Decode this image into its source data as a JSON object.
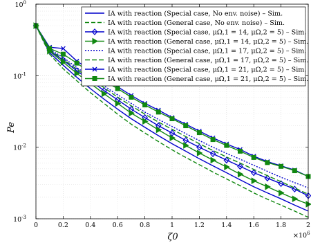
{
  "chart_data": {
    "type": "line",
    "title": "",
    "xlabel": "ζ0",
    "ylabel": "Pe",
    "x_multiplier_label": "×10",
    "x_multiplier_exp": "6",
    "xlim": [
      0,
      2
    ],
    "ylim": [
      0.001,
      1
    ],
    "y_scale": "log",
    "grid": true,
    "legend_position": "top-right",
    "x_ticks": [
      "0",
      "0.2",
      "0.4",
      "0.6",
      "0.8",
      "1",
      "1.2",
      "1.4",
      "1.6",
      "1.8",
      "2"
    ],
    "y_ticks": [
      {
        "value": 1,
        "label": "10",
        "exp": "0"
      },
      {
        "value": 0.1,
        "label": "10",
        "exp": "-1"
      },
      {
        "value": 0.01,
        "label": "10",
        "exp": "-2"
      },
      {
        "value": 0.001,
        "label": "10",
        "exp": "-3"
      }
    ],
    "x": [
      0,
      0.1,
      0.2,
      0.3,
      0.4,
      0.5,
      0.6,
      0.7,
      0.8,
      0.9,
      1.0,
      1.1,
      1.2,
      1.3,
      1.4,
      1.5,
      1.6,
      1.7,
      1.8,
      1.9,
      2.0
    ],
    "series": [
      {
        "name": "IA with reaction (Special case, No env. noise) – Sim.",
        "color": "#0000cc",
        "dash": "",
        "marker": "none",
        "values": [
          0.5,
          0.21,
          0.14,
          0.095,
          0.066,
          0.047,
          0.034,
          0.025,
          0.019,
          0.0145,
          0.0112,
          0.0088,
          0.0069,
          0.0055,
          0.0044,
          0.0035,
          0.0028,
          0.0023,
          0.0019,
          0.00155,
          0.00128
        ]
      },
      {
        "name": "IA with reaction (General case, No env. noise) – Sim.",
        "color": "#118811",
        "dash": "6,3",
        "marker": "none",
        "values": [
          0.5,
          0.2,
          0.125,
          0.085,
          0.058,
          0.041,
          0.029,
          0.021,
          0.0158,
          0.012,
          0.0092,
          0.0072,
          0.0057,
          0.0045,
          0.0036,
          0.0029,
          0.0023,
          0.00188,
          0.00155,
          0.00128,
          0.00105
        ]
      },
      {
        "name": "IA with reaction (Special case, μΩ,1 = 14, μΩ,2 = 5) – Sim.",
        "color": "#0000cc",
        "dash": "",
        "marker": "diamond",
        "values": [
          0.5,
          0.225,
          0.165,
          0.117,
          0.085,
          0.062,
          0.046,
          0.034,
          0.026,
          0.02,
          0.0158,
          0.0125,
          0.01,
          0.0081,
          0.0066,
          0.0054,
          0.0044,
          0.0037,
          0.0031,
          0.0026,
          0.0021
        ]
      },
      {
        "name": "IA with reaction (General case, μΩ,1 = 14, μΩ,2 = 5) – Sim.",
        "color": "#118811",
        "dash": "",
        "marker": "triangle",
        "values": [
          0.5,
          0.22,
          0.155,
          0.108,
          0.078,
          0.056,
          0.041,
          0.03,
          0.023,
          0.0175,
          0.0135,
          0.0106,
          0.0083,
          0.0066,
          0.0053,
          0.0042,
          0.0034,
          0.0028,
          0.0023,
          0.0019,
          0.0016
        ]
      },
      {
        "name": "IA with reaction (Special case, μΩ,1 = 17, μΩ,2 = 5) – Sim.",
        "color": "#0000cc",
        "dash": "2,2",
        "marker": "none",
        "values": [
          0.5,
          0.235,
          0.18,
          0.13,
          0.097,
          0.072,
          0.054,
          0.041,
          0.031,
          0.0245,
          0.0195,
          0.0155,
          0.0124,
          0.01,
          0.0082,
          0.0068,
          0.0056,
          0.0046,
          0.0038,
          0.0032,
          0.0027
        ]
      },
      {
        "name": "IA with reaction (General case, μΩ,1 = 17, μΩ,2 = 5) – Sim.",
        "color": "#118811",
        "dash": "7,3",
        "marker": "none",
        "values": [
          0.5,
          0.23,
          0.17,
          0.123,
          0.091,
          0.068,
          0.05,
          0.038,
          0.029,
          0.0225,
          0.0178,
          0.0141,
          0.0112,
          0.009,
          0.0073,
          0.006,
          0.0049,
          0.004,
          0.0033,
          0.0027,
          0.0022
        ]
      },
      {
        "name": "IA with reaction (Special case, μΩ,1 = 21, μΩ,2 = 5) – Sim.",
        "color": "#0000cc",
        "dash": "",
        "marker": "x",
        "values": [
          0.5,
          0.25,
          0.24,
          0.16,
          0.12,
          0.092,
          0.07,
          0.053,
          0.041,
          0.033,
          0.026,
          0.021,
          0.0168,
          0.0135,
          0.0111,
          0.0093,
          0.0075,
          0.0063,
          0.0055,
          0.0048,
          0.0039
        ]
      },
      {
        "name": "IA with reaction (General case, μΩ,1 = 21, μΩ,2 = 5) – Sim.",
        "color": "#118811",
        "dash": "",
        "marker": "square",
        "values": [
          0.5,
          0.24,
          0.2,
          0.15,
          0.11,
          0.085,
          0.066,
          0.05,
          0.039,
          0.031,
          0.025,
          0.02,
          0.016,
          0.0128,
          0.0106,
          0.0088,
          0.0072,
          0.0061,
          0.0054,
          0.0047,
          0.0039
        ]
      }
    ]
  }
}
